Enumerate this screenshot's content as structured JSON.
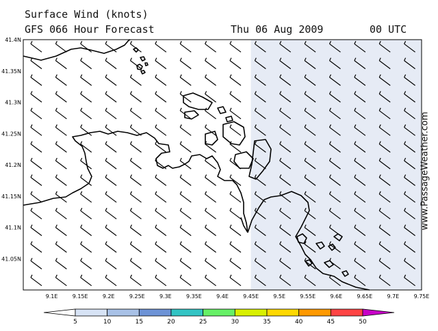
{
  "header": {
    "title": "Surface Wind (knots)",
    "forecast": "GFS 066 Hour Forecast",
    "date": "Thu 06 Aug 2009",
    "time": "00 UTC"
  },
  "watermark": "www.PassageWeather.com",
  "map": {
    "lon_range": [
      9.05,
      9.75
    ],
    "lat_range": [
      41.0,
      41.4
    ],
    "lon_ticks": [
      "9.1E",
      "9.15E",
      "9.2E",
      "9.25E",
      "9.3E",
      "9.35E",
      "9.4E",
      "9.45E",
      "9.5E",
      "9.55E",
      "9.6E",
      "9.65E",
      "9.7E",
      "9.75E"
    ],
    "lat_ticks": [
      "41.05N",
      "41.1N",
      "41.15N",
      "41.2N",
      "41.25N",
      "41.3N",
      "41.35N",
      "41.4N"
    ],
    "wind_speed_field": [
      {
        "lon_from": 9.45,
        "lon_to": 9.75,
        "speed_band": "5-10",
        "color": "#e6ebf5"
      }
    ],
    "wind_direction": "NW",
    "wind_speed_knots": "5-10",
    "colors": {
      "land": "#ffffff",
      "coast": "#000000",
      "barb": "#000000"
    }
  },
  "colorbar": {
    "labels": [
      "5",
      "10",
      "15",
      "20",
      "25",
      "30",
      "35",
      "40",
      "45",
      "50"
    ],
    "colors": [
      "#ffffff",
      "#d7e3f5",
      "#a8c1e6",
      "#6d93d6",
      "#33c4c4",
      "#66f066",
      "#d8f000",
      "#ffd800",
      "#ff9900",
      "#ff4444",
      "#d60000",
      "#c800c8"
    ]
  }
}
